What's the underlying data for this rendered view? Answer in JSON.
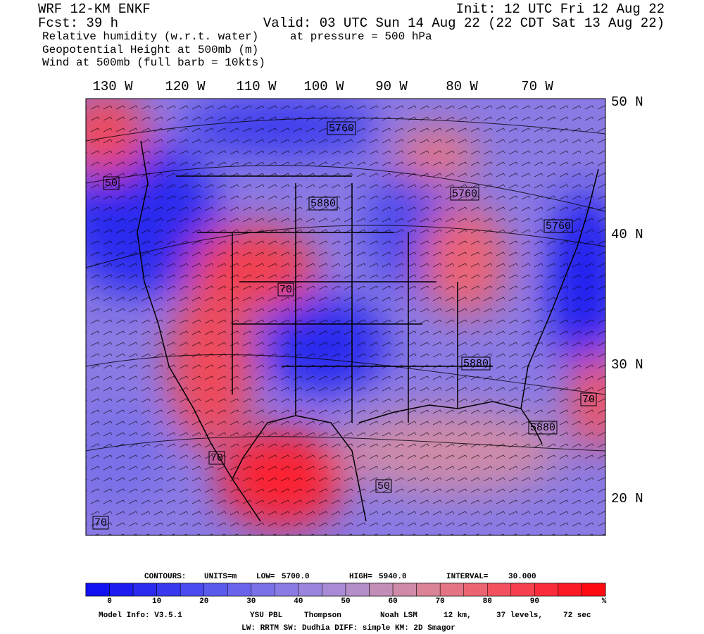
{
  "header": {
    "left": [
      "WRF 12-KM ENKF",
      "Fcst:   39 h",
      "Relative humidity (w.r.t. water)",
      "Geopotential Height at 500mb (m)",
      "Wind at 500mb (full barb = 10kts)"
    ],
    "right": [
      "Init: 12 UTC Fri 12 Aug 22",
      "Valid: 03 UTC Sun 14 Aug 22 (22 CDT Sat 13 Aug 22)"
    ],
    "pressure": "at pressure =  500 hPa"
  },
  "map": {
    "longitude_labels": [
      "130 W",
      "120 W",
      "110 W",
      "100 W",
      "90 W",
      "80 W",
      "70 W"
    ],
    "latitude_labels": [
      "50 N",
      "40 N",
      "30 N",
      "20 N"
    ],
    "contour_labels": [
      "5760",
      "5880",
      "5760",
      "5760",
      "5880",
      "5880",
      "50",
      "70",
      "70",
      "50",
      "70",
      "70"
    ]
  },
  "colorbar": {
    "contours": [
      "CONTOURS:",
      "UNITS=m",
      "LOW=",
      "5700.0",
      "HIGH=",
      "5940.0",
      "INTERVAL=",
      "30.000"
    ],
    "labels": [
      "0",
      "10",
      "20",
      "30",
      "40",
      "50",
      "60",
      "70",
      "80",
      "90",
      "%"
    ],
    "colors": [
      "#1010f0",
      "#1c1cf0",
      "#2a2aef",
      "#3838ee",
      "#4a4aee",
      "#5a5aed",
      "#6a64ec",
      "#7a70e8",
      "#8a7ae4",
      "#9a84de",
      "#a88ad6",
      "#b48ec8",
      "#c28eb8",
      "#ce8aa8",
      "#da8296",
      "#e47484",
      "#ec6472",
      "#f25260",
      "#f6404e",
      "#fa2c3a",
      "#fc1a26",
      "#fe0a12"
    ]
  },
  "footer": {
    "line1": [
      "Model Info: V3.5.1",
      "YSU PBL",
      "Thompson",
      "Noah LSM",
      "12 km,",
      "37 levels,",
      "72 sec"
    ],
    "line2": "LW: RRTM SW: Dudhia DIFF: simple KM: 2D Smagor"
  }
}
